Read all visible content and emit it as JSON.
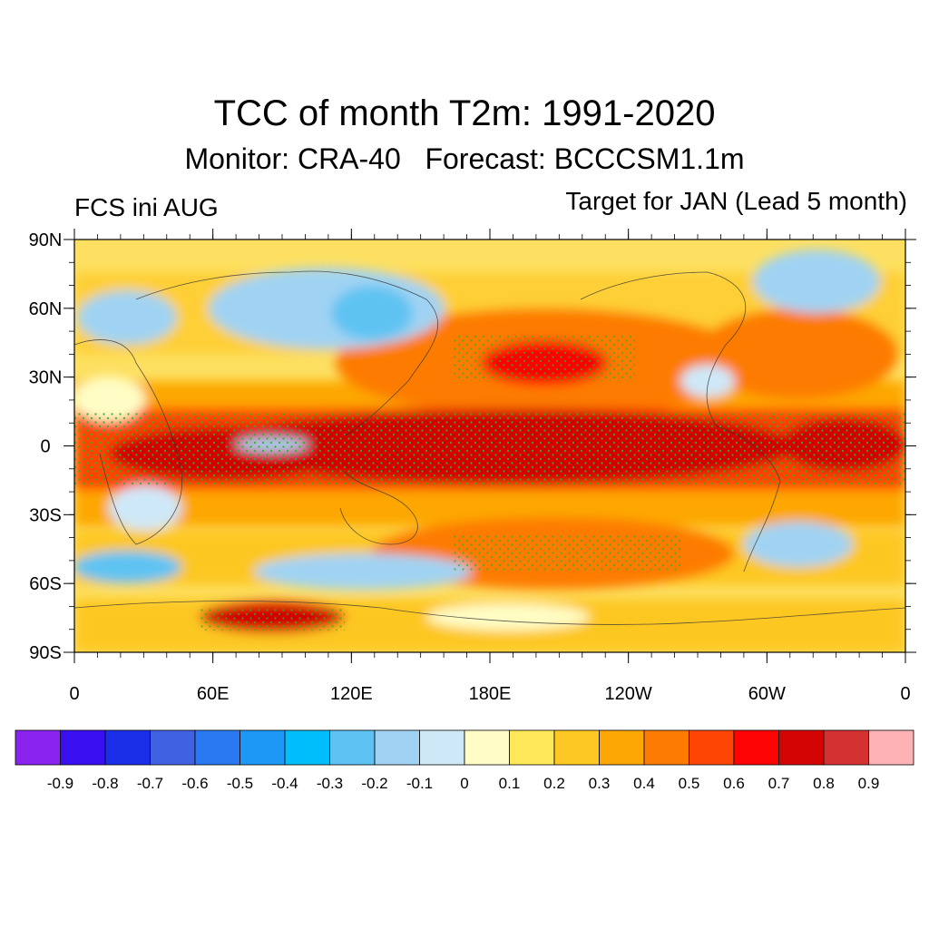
{
  "title": "TCC of month T2m: 1991-2020",
  "subtitle": "Monitor: CRA-40   Forecast: BCCCSM1.1m",
  "left_label": "FCS ini AUG",
  "right_label": "Target for JAN (Lead 5 month)",
  "map": {
    "projection": "cylindrical-equidistant",
    "lon_range": [
      0,
      360
    ],
    "lat_range": [
      -90,
      90
    ],
    "lat_ticks": [
      {
        "value": 90,
        "label": "90N"
      },
      {
        "value": 60,
        "label": "60N"
      },
      {
        "value": 30,
        "label": "30N"
      },
      {
        "value": 0,
        "label": "0"
      },
      {
        "value": -30,
        "label": "30S"
      },
      {
        "value": -60,
        "label": "60S"
      },
      {
        "value": -90,
        "label": "90S"
      }
    ],
    "lon_ticks": [
      {
        "value": 0,
        "label": "0"
      },
      {
        "value": 60,
        "label": "60E"
      },
      {
        "value": 120,
        "label": "120E"
      },
      {
        "value": 180,
        "label": "180E"
      },
      {
        "value": 240,
        "label": "120W"
      },
      {
        "value": 300,
        "label": "60W"
      },
      {
        "value": 360,
        "label": "0"
      }
    ],
    "stippling": "significant-correlation-dots"
  },
  "colorbar": {
    "colors": [
      "#8a22f0",
      "#3a10f2",
      "#1b2ee8",
      "#4062e2",
      "#2b79f2",
      "#1d98f7",
      "#00bdfb",
      "#5ec3f2",
      "#a0d3f3",
      "#cfe8f8",
      "#fffdc5",
      "#fde85a",
      "#fdc724",
      "#fda705",
      "#fd7b03",
      "#fd4504",
      "#fd0303",
      "#d40404",
      "#d43131",
      "#fdb3b5"
    ],
    "labels": [
      "-0.9",
      "-0.8",
      "-0.7",
      "-0.6",
      "-0.5",
      "-0.4",
      "-0.3",
      "-0.2",
      "-0.1",
      "0",
      "0.1",
      "0.2",
      "0.3",
      "0.4",
      "0.5",
      "0.6",
      "0.7",
      "0.8",
      "0.9"
    ]
  }
}
